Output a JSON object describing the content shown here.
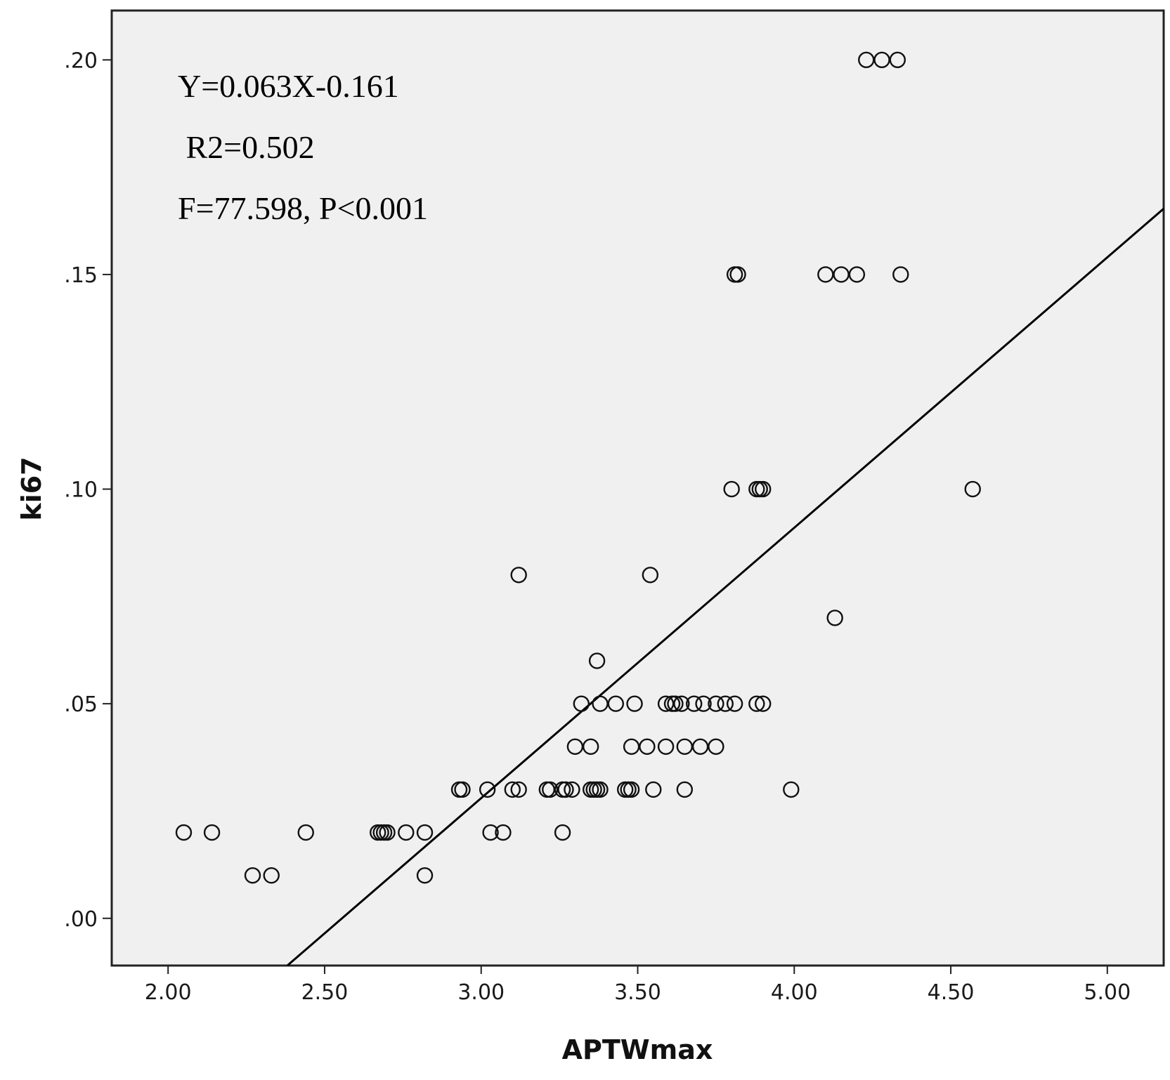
{
  "chart_data": {
    "type": "scatter",
    "xlabel": "APTWmax",
    "ylabel": "ki67",
    "xlim": [
      1.82,
      5.18
    ],
    "ylim": [
      -0.011,
      0.2115
    ],
    "x_ticks": [
      "2.00",
      "2.50",
      "3.00",
      "3.50",
      "4.00",
      "4.50",
      "5.00"
    ],
    "x_tick_values": [
      2.0,
      2.5,
      3.0,
      3.5,
      4.0,
      4.5,
      5.0
    ],
    "y_ticks": [
      ".00",
      ".05",
      ".10",
      ".15",
      ".20"
    ],
    "y_tick_values": [
      0.0,
      0.05,
      0.1,
      0.15,
      0.2
    ],
    "grid": false,
    "legend": "none",
    "fit_line": {
      "slope": 0.063,
      "intercept": -0.161
    },
    "annotations": [
      "Y=0.063X-0.161",
      " R2=0.502",
      "F=77.598, P<0.001"
    ],
    "colors": {
      "plot_background": "#f0f0f0",
      "marker_stroke": "#111111",
      "line": "#000000",
      "frame": "#222222"
    },
    "points": [
      [
        2.05,
        0.02
      ],
      [
        2.14,
        0.02
      ],
      [
        2.27,
        0.01
      ],
      [
        2.33,
        0.01
      ],
      [
        2.44,
        0.02
      ],
      [
        2.67,
        0.02
      ],
      [
        2.68,
        0.02
      ],
      [
        2.69,
        0.02
      ],
      [
        2.7,
        0.02
      ],
      [
        2.76,
        0.02
      ],
      [
        2.82,
        0.02
      ],
      [
        2.82,
        0.01
      ],
      [
        2.93,
        0.03
      ],
      [
        2.94,
        0.03
      ],
      [
        3.02,
        0.03
      ],
      [
        3.03,
        0.02
      ],
      [
        3.07,
        0.02
      ],
      [
        3.1,
        0.03
      ],
      [
        3.12,
        0.03
      ],
      [
        3.12,
        0.08
      ],
      [
        3.21,
        0.03
      ],
      [
        3.22,
        0.03
      ],
      [
        3.26,
        0.03
      ],
      [
        3.27,
        0.03
      ],
      [
        3.26,
        0.02
      ],
      [
        3.29,
        0.03
      ],
      [
        3.3,
        0.04
      ],
      [
        3.32,
        0.05
      ],
      [
        3.35,
        0.04
      ],
      [
        3.35,
        0.03
      ],
      [
        3.36,
        0.03
      ],
      [
        3.37,
        0.03
      ],
      [
        3.38,
        0.03
      ],
      [
        3.37,
        0.06
      ],
      [
        3.38,
        0.05
      ],
      [
        3.43,
        0.05
      ],
      [
        3.46,
        0.03
      ],
      [
        3.47,
        0.03
      ],
      [
        3.48,
        0.04
      ],
      [
        3.48,
        0.03
      ],
      [
        3.49,
        0.05
      ],
      [
        3.53,
        0.04
      ],
      [
        3.54,
        0.08
      ],
      [
        3.55,
        0.03
      ],
      [
        3.59,
        0.05
      ],
      [
        3.59,
        0.04
      ],
      [
        3.61,
        0.05
      ],
      [
        3.62,
        0.05
      ],
      [
        3.64,
        0.05
      ],
      [
        3.65,
        0.04
      ],
      [
        3.65,
        0.03
      ],
      [
        3.68,
        0.05
      ],
      [
        3.7,
        0.04
      ],
      [
        3.71,
        0.05
      ],
      [
        3.75,
        0.05
      ],
      [
        3.75,
        0.04
      ],
      [
        3.78,
        0.05
      ],
      [
        3.8,
        0.1
      ],
      [
        3.81,
        0.05
      ],
      [
        3.81,
        0.15
      ],
      [
        3.82,
        0.15
      ],
      [
        3.88,
        0.05
      ],
      [
        3.88,
        0.1
      ],
      [
        3.89,
        0.1
      ],
      [
        3.9,
        0.1
      ],
      [
        3.9,
        0.05
      ],
      [
        3.99,
        0.03
      ],
      [
        4.1,
        0.15
      ],
      [
        4.13,
        0.07
      ],
      [
        4.15,
        0.15
      ],
      [
        4.2,
        0.15
      ],
      [
        4.23,
        0.2
      ],
      [
        4.28,
        0.2
      ],
      [
        4.33,
        0.2
      ],
      [
        4.34,
        0.15
      ],
      [
        4.57,
        0.1
      ]
    ]
  }
}
